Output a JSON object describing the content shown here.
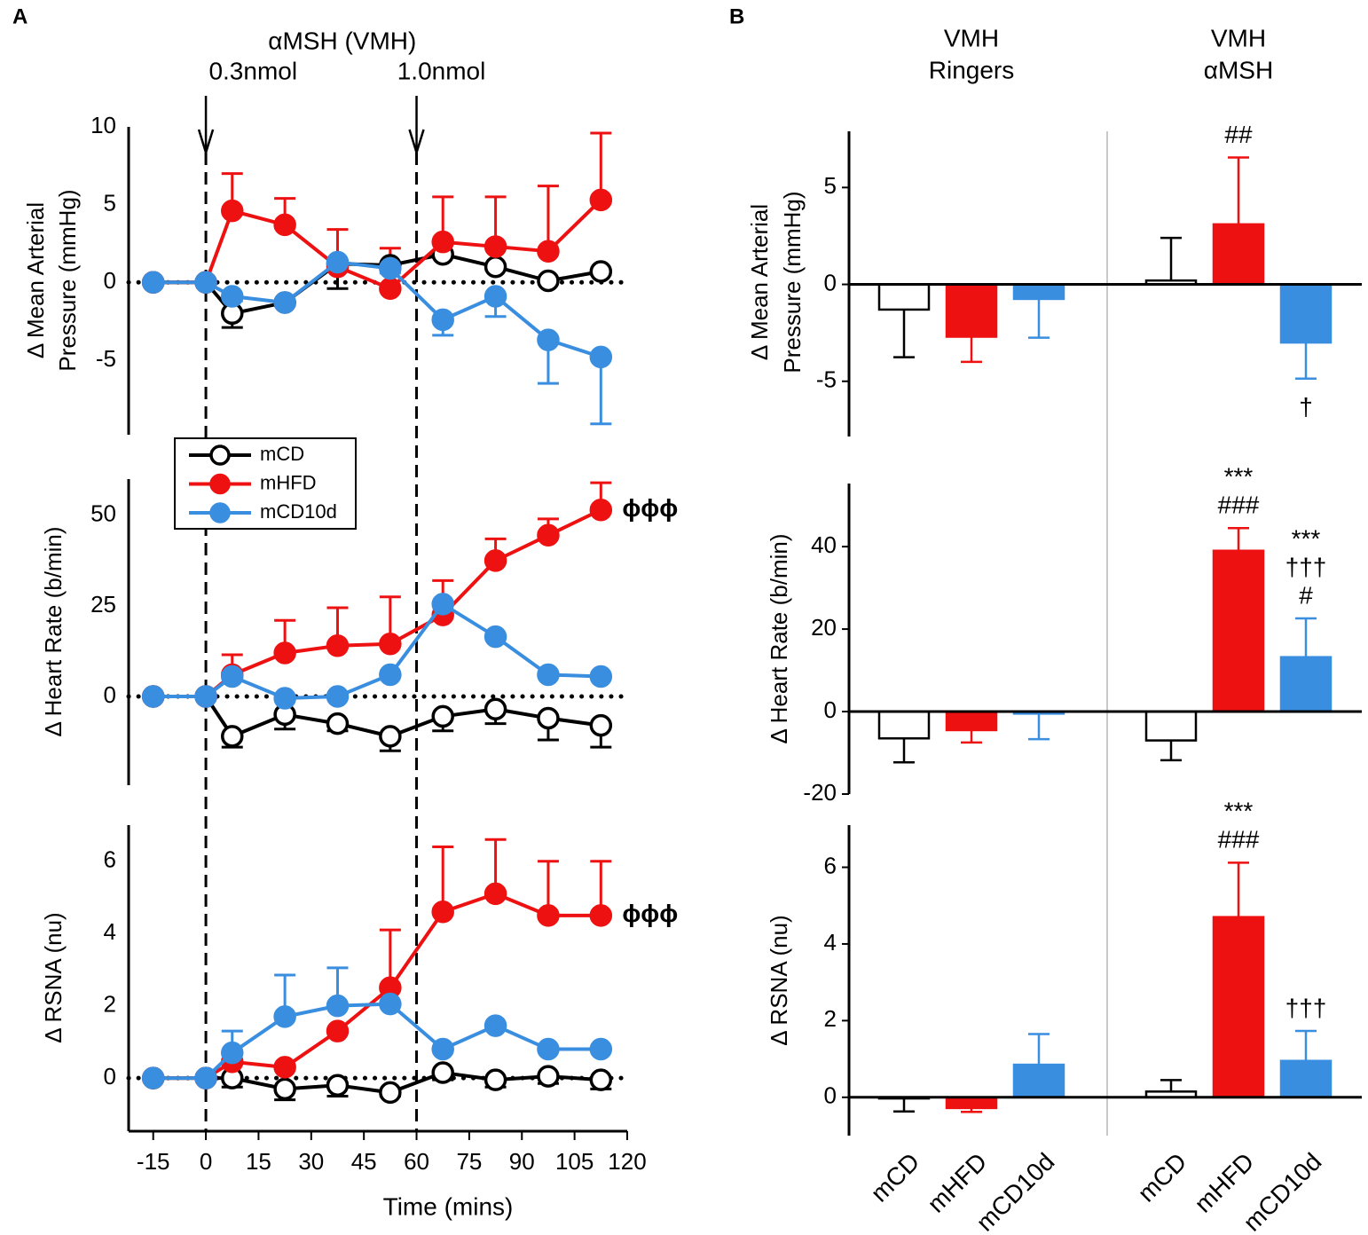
{
  "panel_labels": [
    "A",
    "B"
  ],
  "chart_data": [
    {
      "type": "line",
      "ylabel": [
        "Δ Mean Arterial",
        "Pressure (mmHg)"
      ],
      "x": [
        -15,
        0,
        7.5,
        22.5,
        37.5,
        52.5,
        67.5,
        82.5,
        97.5,
        112.5
      ],
      "xlim": [
        -22,
        120
      ],
      "ylim": [
        -9.8,
        10
      ],
      "yticks": [
        -5,
        0,
        5,
        10
      ],
      "zero_line": "dotted",
      "event_title": "αMSH (VMH)",
      "events": [
        {
          "x": 0,
          "label": "0.3nmol"
        },
        {
          "x": 60,
          "label": "1.0nmol"
        }
      ],
      "series": [
        {
          "color": "#000000",
          "marker_fill": "#ffffff",
          "error_direction": "down",
          "values": [
            0,
            0,
            -2,
            -1.3,
            1.2,
            1.1,
            1.8,
            1.0,
            0.1,
            0.7
          ],
          "errors": [
            0,
            0,
            0.9,
            0.2,
            1.6,
            0.2,
            0.2,
            0.2,
            0.2,
            0.2
          ]
        },
        {
          "color": "#ee1111",
          "marker_fill": "#ee1111",
          "error_direction": "up",
          "values": [
            0,
            0,
            4.6,
            3.7,
            1.0,
            -0.4,
            2.6,
            2.3,
            2.0,
            5.3
          ],
          "errors": [
            0,
            0,
            2.4,
            1.7,
            2.4,
            2.6,
            2.9,
            3.2,
            4.2,
            4.3
          ]
        },
        {
          "color": "#3a8ee0",
          "marker_fill": "#3a8ee0",
          "error_direction": "down",
          "values": [
            0,
            0,
            -0.9,
            -1.3,
            1.3,
            0.9,
            -2.4,
            -0.9,
            -3.7,
            -4.8
          ],
          "errors": [
            0,
            0,
            0.3,
            0.2,
            0.3,
            0.3,
            1.0,
            1.3,
            2.8,
            4.3
          ]
        }
      ]
    },
    {
      "type": "line",
      "ylabel": [
        "Δ Heart Rate (b/min)"
      ],
      "x": [
        -15,
        0,
        7.5,
        22.5,
        37.5,
        52.5,
        67.5,
        82.5,
        97.5,
        112.5
      ],
      "xlim": [
        -22,
        120
      ],
      "ylim": [
        -24.5,
        60
      ],
      "yticks": [
        0,
        25,
        50
      ],
      "zero_line": "dotted",
      "legend": "upper left",
      "annotations": [
        {
          "series": 1,
          "lines": [
            "ϕϕϕ"
          ]
        }
      ],
      "series": [
        {
          "name": "mCD",
          "color": "#000000",
          "marker_fill": "#ffffff",
          "error_direction": "down",
          "values": [
            0,
            0,
            -11,
            -5,
            -7.5,
            -11,
            -5.5,
            -3.5,
            -6,
            -8
          ],
          "errors": [
            0,
            0,
            3,
            4,
            2,
            4,
            4,
            4,
            6,
            6
          ]
        },
        {
          "name": "mHFD",
          "color": "#ee1111",
          "marker_fill": "#ee1111",
          "error_direction": "up",
          "values": [
            0,
            0,
            6,
            12,
            14,
            14.5,
            22.5,
            37.5,
            44.5,
            51.5
          ],
          "errors": [
            0,
            0,
            5.5,
            9,
            10.5,
            13,
            9.5,
            6,
            4.5,
            7.5
          ]
        },
        {
          "name": "mCD10d",
          "color": "#3a8ee0",
          "marker_fill": "#3a8ee0",
          "error_direction": "up",
          "values": [
            0,
            0,
            5.5,
            -0.5,
            0,
            6,
            25.5,
            16.5,
            6,
            5.5
          ],
          "errors": [
            0,
            0,
            0,
            0,
            0,
            0,
            0,
            0,
            0,
            0
          ]
        }
      ]
    },
    {
      "type": "line",
      "ylabel": [
        "Δ RSNA (nu)"
      ],
      "xlabel": "Time (mins)",
      "x": [
        -15,
        0,
        7.5,
        22.5,
        37.5,
        52.5,
        67.5,
        82.5,
        97.5,
        112.5
      ],
      "xlim": [
        -22,
        120
      ],
      "xticks": [
        -15,
        0,
        15,
        30,
        45,
        60,
        75,
        90,
        105,
        120
      ],
      "ylim": [
        -1.47,
        7
      ],
      "yticks": [
        0,
        2,
        4,
        6
      ],
      "zero_line": "dotted",
      "annotations": [
        {
          "series": 1,
          "lines": [
            "ϕϕϕ"
          ]
        }
      ],
      "series": [
        {
          "color": "#000000",
          "marker_fill": "#ffffff",
          "error_direction": "down",
          "values": [
            0,
            0,
            0,
            -0.3,
            -0.2,
            -0.4,
            0.15,
            -0.05,
            0.05,
            -0.05
          ],
          "errors": [
            0,
            0,
            0.25,
            0.3,
            0.3,
            0.1,
            0.2,
            0.2,
            0.2,
            0.25
          ]
        },
        {
          "color": "#ee1111",
          "marker_fill": "#ee1111",
          "error_direction": "up",
          "values": [
            0,
            0,
            0.45,
            0.3,
            1.3,
            2.5,
            4.6,
            5.1,
            4.5,
            4.5
          ],
          "errors": [
            0,
            0,
            0,
            0,
            0,
            1.6,
            1.8,
            1.5,
            1.5,
            1.5
          ]
        },
        {
          "color": "#3a8ee0",
          "marker_fill": "#3a8ee0",
          "error_direction": "up",
          "values": [
            0,
            0,
            0.7,
            1.7,
            2.0,
            2.05,
            0.8,
            1.45,
            0.8,
            0.8
          ],
          "errors": [
            0,
            0,
            0.6,
            1.15,
            1.05,
            0,
            0,
            0,
            0,
            0
          ]
        }
      ]
    },
    {
      "type": "bar",
      "ylabel": [
        "Δ Mean Arterial",
        "Pressure (mmHg)"
      ],
      "group_labels": [
        [
          "VMH",
          "Ringers"
        ],
        [
          "VMH",
          "αMSH"
        ]
      ],
      "ylim": [
        -7.85,
        7.9
      ],
      "yticks": [
        -5,
        0,
        5
      ],
      "values": [
        -1.3,
        -2.7,
        -0.75,
        0.2,
        3.1,
        -3.0
      ],
      "errors": [
        2.46,
        1.3,
        2.0,
        2.2,
        3.45,
        1.86
      ],
      "colors": [
        "#ffffff",
        "#ee1111",
        "#3a8ee0",
        "#ffffff",
        "#ee1111",
        "#3a8ee0"
      ],
      "edge_colors": [
        "#000000",
        "#ee1111",
        "#3a8ee0",
        "#000000",
        "#ee1111",
        "#3a8ee0"
      ],
      "annotations": [
        {
          "category": 4,
          "side": "above",
          "lines": [
            "##"
          ]
        },
        {
          "category": 5,
          "side": "below",
          "lines": [
            "†"
          ]
        }
      ]
    },
    {
      "type": "bar",
      "ylabel": [
        "Δ Heart Rate (b/min)"
      ],
      "ylim": [
        -20,
        55.3
      ],
      "yticks": [
        -20,
        0,
        20,
        40
      ],
      "values": [
        -6.5,
        -4.5,
        -0.5,
        -7,
        39,
        13.2
      ],
      "errors": [
        5.8,
        3,
        6.2,
        4.8,
        5.5,
        9.4
      ],
      "colors": [
        "#ffffff",
        "#ee1111",
        "#3a8ee0",
        "#ffffff",
        "#ee1111",
        "#3a8ee0"
      ],
      "edge_colors": [
        "#000000",
        "#ee1111",
        "#3a8ee0",
        "#000000",
        "#ee1111",
        "#3a8ee0"
      ],
      "annotations": [
        {
          "category": 4,
          "side": "above",
          "lines": [
            "***",
            "###"
          ]
        },
        {
          "category": 5,
          "side": "above",
          "lines": [
            "***",
            "†††",
            "#"
          ]
        }
      ]
    },
    {
      "type": "bar",
      "ylabel": [
        "Δ RSNA (nu)"
      ],
      "categories": [
        "mCD",
        "mHFD",
        "mCD10d",
        "mCD",
        "mHFD",
        "mCD10d"
      ],
      "ylim": [
        -1.0,
        7.1
      ],
      "yticks": [
        0,
        2,
        4,
        6
      ],
      "values": [
        -0.03,
        -0.28,
        0.85,
        0.15,
        4.7,
        0.95
      ],
      "errors": [
        0.34,
        0.1,
        0.8,
        0.3,
        1.42,
        0.78
      ],
      "colors": [
        "#ffffff",
        "#ee1111",
        "#3a8ee0",
        "#ffffff",
        "#ee1111",
        "#3a8ee0"
      ],
      "edge_colors": [
        "#000000",
        "#ee1111",
        "#3a8ee0",
        "#000000",
        "#ee1111",
        "#3a8ee0"
      ],
      "annotations": [
        {
          "category": 4,
          "side": "above",
          "lines": [
            "***",
            "###"
          ]
        },
        {
          "category": 5,
          "side": "above",
          "lines": [
            "†††"
          ]
        }
      ]
    }
  ]
}
